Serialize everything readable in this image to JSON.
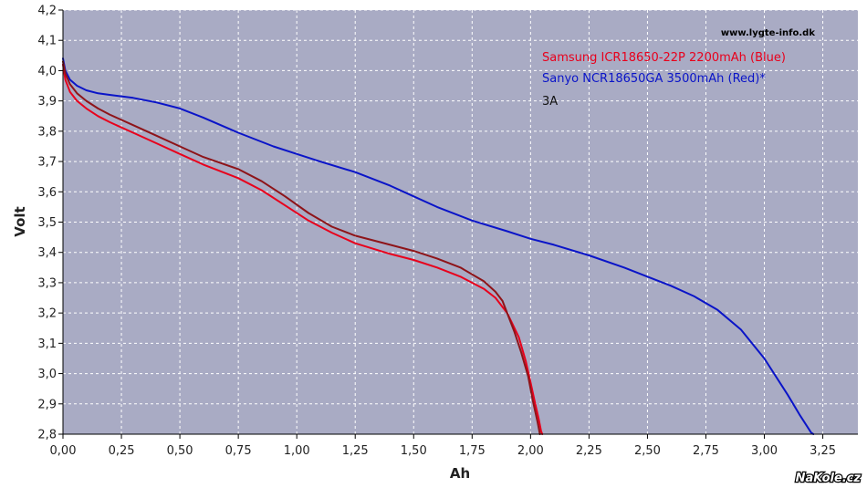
{
  "chart_data": {
    "type": "line",
    "title": "",
    "xlabel": "Ah",
    "ylabel": "Volt",
    "xlim": [
      0,
      3.4
    ],
    "ylim": [
      2.8,
      4.2
    ],
    "grid": true,
    "x_ticks": [
      "0,00",
      "0,25",
      "0,50",
      "0,75",
      "1,00",
      "1,25",
      "1,50",
      "1,75",
      "2,00",
      "2,25",
      "2,50",
      "2,75",
      "3,00",
      "3,25"
    ],
    "x_tick_values": [
      0,
      0.25,
      0.5,
      0.75,
      1.0,
      1.25,
      1.5,
      1.75,
      2.0,
      2.25,
      2.5,
      2.75,
      3.0,
      3.25
    ],
    "y_ticks": [
      "2,8",
      "2,9",
      "3,0",
      "3,1",
      "3,2",
      "3,3",
      "3,4",
      "3,5",
      "3,6",
      "3,7",
      "3,8",
      "3,9",
      "4,0",
      "4,1",
      "4,2"
    ],
    "y_tick_values": [
      2.8,
      2.9,
      3.0,
      3.1,
      3.2,
      3.3,
      3.4,
      3.5,
      3.6,
      3.7,
      3.8,
      3.9,
      4.0,
      4.1,
      4.2
    ],
    "annotations": {
      "source": "www.lygte-info.dk",
      "legend_lines": [
        {
          "text": "Samsung ICR18650-22P 2200mAh (Blue)",
          "color": "#e8001c"
        },
        {
          "text": "Sanyo NCR18650GA 3500mAh (Red)*",
          "color": "#0a14c8"
        },
        {
          "text": "3A",
          "color": "#111111"
        }
      ],
      "watermark": "NaKole.cz"
    },
    "legend_position": "top-right",
    "background_color": "#a9abc4",
    "series": [
      {
        "color": "#0a14c8",
        "x": [
          0,
          0.01,
          0.03,
          0.06,
          0.1,
          0.15,
          0.2,
          0.3,
          0.4,
          0.5,
          0.6,
          0.75,
          0.9,
          1.0,
          1.1,
          1.25,
          1.4,
          1.5,
          1.6,
          1.75,
          1.9,
          2.0,
          2.1,
          2.25,
          2.4,
          2.5,
          2.6,
          2.7,
          2.8,
          2.9,
          3.0,
          3.1,
          3.15,
          3.2,
          3.21
        ],
        "y": [
          4.04,
          4.0,
          3.97,
          3.95,
          3.935,
          3.925,
          3.92,
          3.91,
          3.895,
          3.875,
          3.845,
          3.795,
          3.75,
          3.725,
          3.7,
          3.665,
          3.62,
          3.585,
          3.55,
          3.505,
          3.47,
          3.445,
          3.425,
          3.39,
          3.35,
          3.32,
          3.29,
          3.255,
          3.21,
          3.145,
          3.05,
          2.93,
          2.865,
          2.805,
          2.8
        ]
      },
      {
        "color": "#e8001c",
        "x": [
          0,
          0.01,
          0.03,
          0.06,
          0.1,
          0.15,
          0.2,
          0.3,
          0.4,
          0.5,
          0.6,
          0.75,
          0.85,
          0.95,
          1.05,
          1.15,
          1.25,
          1.4,
          1.5,
          1.6,
          1.7,
          1.8,
          1.85,
          1.9,
          1.95,
          1.98,
          2.0,
          2.02,
          2.035,
          2.045,
          2.05
        ],
        "y": [
          4.02,
          3.97,
          3.93,
          3.9,
          3.875,
          3.85,
          3.83,
          3.795,
          3.76,
          3.725,
          3.69,
          3.645,
          3.605,
          3.555,
          3.505,
          3.465,
          3.43,
          3.395,
          3.375,
          3.35,
          3.32,
          3.28,
          3.25,
          3.2,
          3.12,
          3.04,
          2.97,
          2.9,
          2.85,
          2.81,
          2.8
        ]
      },
      {
        "color": "#8e1419",
        "x": [
          0,
          0.01,
          0.03,
          0.06,
          0.1,
          0.15,
          0.2,
          0.3,
          0.4,
          0.5,
          0.6,
          0.75,
          0.85,
          0.95,
          1.05,
          1.15,
          1.25,
          1.4,
          1.5,
          1.6,
          1.7,
          1.8,
          1.85,
          1.88,
          1.9,
          1.93,
          1.96,
          1.99,
          2.01,
          2.03,
          2.04
        ],
        "y": [
          4.03,
          3.99,
          3.955,
          3.925,
          3.9,
          3.875,
          3.855,
          3.82,
          3.785,
          3.75,
          3.715,
          3.675,
          3.635,
          3.585,
          3.53,
          3.485,
          3.455,
          3.425,
          3.405,
          3.38,
          3.35,
          3.305,
          3.27,
          3.24,
          3.2,
          3.14,
          3.07,
          2.99,
          2.91,
          2.84,
          2.8
        ]
      }
    ]
  }
}
